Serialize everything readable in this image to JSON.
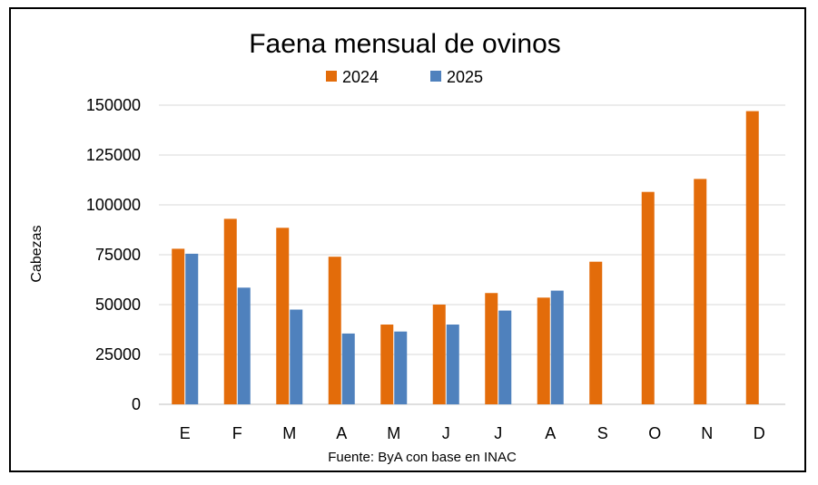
{
  "chart_data": {
    "type": "bar",
    "title": "Faena mensual de ovinos",
    "ylabel": "Cabezas",
    "xlabel": "",
    "source": "Fuente: ByA con base en INAC",
    "categories": [
      "E",
      "F",
      "M",
      "A",
      "M",
      "J",
      "J",
      "A",
      "S",
      "O",
      "N",
      "D"
    ],
    "ylim": [
      0,
      150000
    ],
    "yticks": [
      0,
      25000,
      50000,
      75000,
      100000,
      125000,
      150000
    ],
    "ytick_labels": [
      "0",
      "25000",
      "50000",
      "75000",
      "100000",
      "125000",
      "150000"
    ],
    "series": [
      {
        "name": "2024",
        "color": "#E36C0A",
        "values": [
          78000,
          93000,
          88500,
          74000,
          40000,
          50000,
          55800,
          53500,
          71500,
          106500,
          113000,
          147000
        ]
      },
      {
        "name": "2025",
        "color": "#4F81BD",
        "values": [
          75500,
          58500,
          47500,
          35500,
          36500,
          40000,
          47000,
          57000,
          null,
          null,
          null,
          null
        ]
      }
    ],
    "legend_position": "top-center",
    "grid": true
  }
}
